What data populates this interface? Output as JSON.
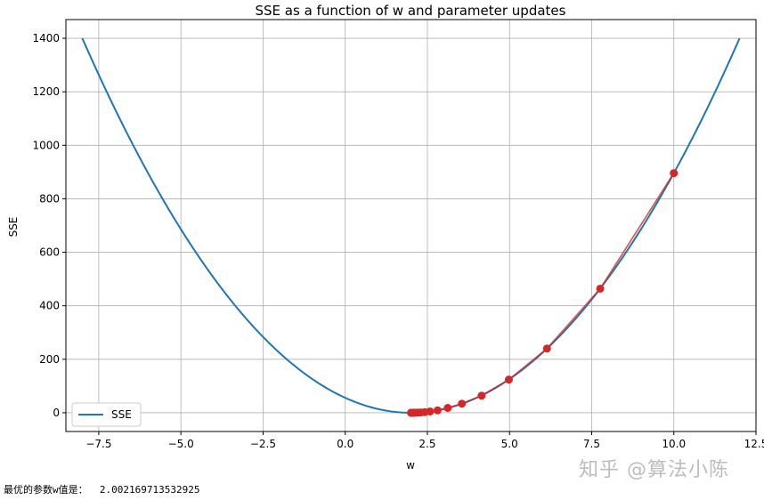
{
  "chart_data": {
    "type": "line",
    "title": "SSE as a function of w and parameter updates",
    "xlabel": "w",
    "ylabel": "SSE",
    "xlim": [
      -8.5,
      12.5
    ],
    "ylim": [
      -70,
      1470
    ],
    "x_ticks": [
      -7.5,
      -5.0,
      -2.5,
      0.0,
      2.5,
      5.0,
      7.5,
      10.0,
      12.5
    ],
    "x_tick_labels": [
      "−7.5",
      "−5.0",
      "−2.5",
      "0.0",
      "2.5",
      "5.0",
      "7.5",
      "10.0",
      "12.5"
    ],
    "y_ticks": [
      0,
      200,
      400,
      600,
      800,
      1000,
      1200,
      1400
    ],
    "y_tick_labels": [
      "0",
      "200",
      "400",
      "600",
      "800",
      "1000",
      "1200",
      "1400"
    ],
    "grid": true,
    "legend": "lower-left",
    "series": [
      {
        "name": "SSE",
        "kind": "curve",
        "color": "#1f77b4",
        "formula": "14*(w-2)^2",
        "x_range": [
          -8,
          12
        ]
      },
      {
        "kind": "updates",
        "color": "#d62728",
        "x": [
          10.0,
          7.76,
          6.14,
          4.98,
          4.15,
          3.55,
          3.12,
          2.81,
          2.58,
          2.42,
          2.3,
          2.22,
          2.16,
          2.11,
          2.08,
          2.06,
          2.04,
          2.03,
          2.02,
          2.01,
          2.005,
          2.002
        ],
        "y": [
          896,
          464,
          240,
          124,
          64,
          34,
          18,
          9,
          5,
          2.5,
          1.3,
          0.7,
          0.4,
          0.2,
          0.1,
          0.05,
          0.02,
          0.01,
          0.006,
          0.001,
          0.0004,
          0.0001
        ]
      }
    ]
  },
  "output_text": "最优的参数w值是：  2.002169713532925",
  "watermark": "知乎 @算法小陈"
}
